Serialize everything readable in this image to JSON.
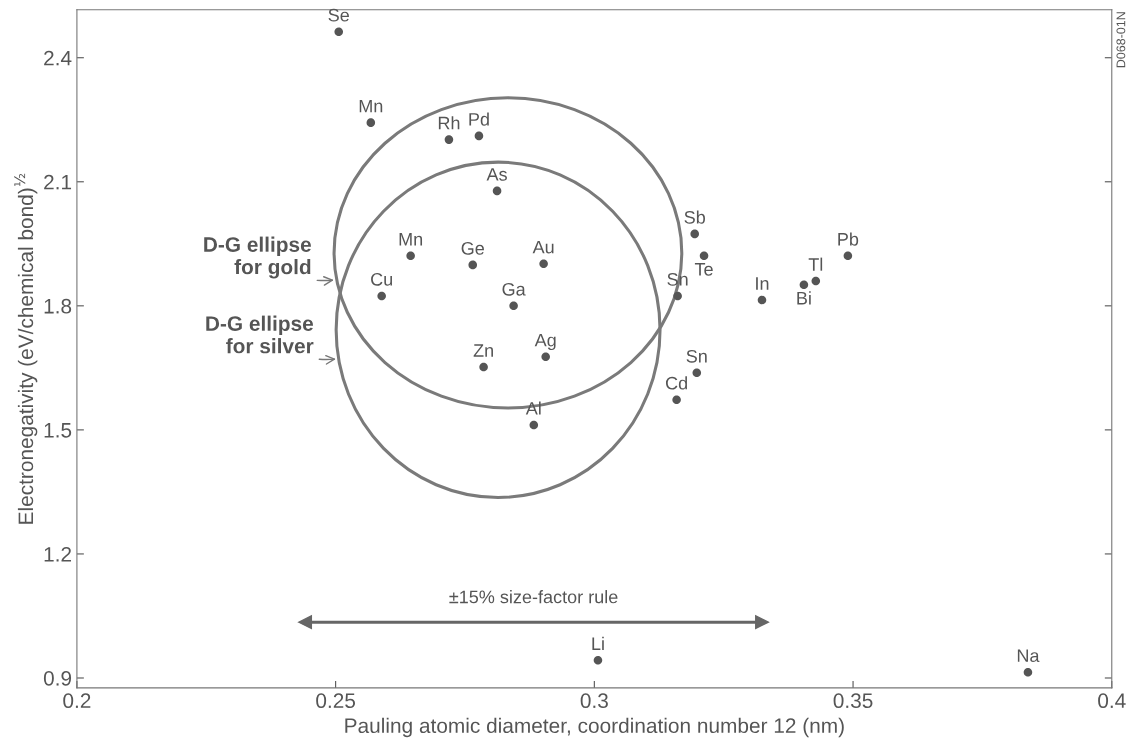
{
  "chart_data": {
    "type": "scatter",
    "xlabel": "Pauling atomic diameter, coordination number 12 (nm)",
    "ylabel": "Electronegativity (eV/chemical bond)$^{½}$",
    "xlim": [
      0.2,
      0.4
    ],
    "xticks": [
      0.2,
      0.25,
      0.3,
      0.35,
      0.4
    ],
    "ylim": [
      0.876,
      2.516
    ],
    "yticks": [
      0.9,
      1.2,
      1.5,
      1.8,
      2.1,
      2.4
    ],
    "grid": false,
    "legend": false,
    "marker": "circle",
    "annotations": [
      "D068-01N",
      "D-G ellipse\nfor gold",
      "D-G ellipse\nfor silver"
    ],
    "series": [
      {
        "type": "scatter",
        "color": "#555555",
        "x": [
          0.2506,
          0.2568,
          0.2719,
          0.2777,
          0.2812,
          0.3194,
          0.2645,
          0.2765,
          0.2902,
          0.3212,
          0.349,
          0.3405,
          0.3428,
          0.2589,
          0.2844,
          0.3161,
          0.3324,
          0.2906,
          0.2786,
          0.3198,
          0.3159,
          0.2883,
          0.3007,
          0.3838
        ],
        "values": [
          2.463,
          2.243,
          2.202,
          2.211,
          2.078,
          1.974,
          1.921,
          1.899,
          1.902,
          1.921,
          1.921,
          1.851,
          1.86,
          1.824,
          1.8,
          1.824,
          1.814,
          1.677,
          1.652,
          1.638,
          1.573,
          1.512,
          0.943,
          0.914
        ],
        "value_labels": [
          "Se",
          "Mn",
          "Rh",
          "Pd",
          "As",
          "Sb",
          "Mn",
          "Ge",
          "Au",
          "Te",
          "Pb",
          "Bi",
          "Tl",
          "Cu",
          "Ga",
          "Sn",
          "In",
          "Ag",
          "Zn",
          "Sn",
          "Cd",
          "Al",
          "Li",
          "Na"
        ]
      },
      {
        "type": "line",
        "name": "±15% size-factor rule",
        "color": "#666666",
        "marker": "triangle",
        "x": [
          0.2441,
          0.3324
        ],
        "values": [
          1.035,
          1.035
        ]
      }
    ]
  }
}
